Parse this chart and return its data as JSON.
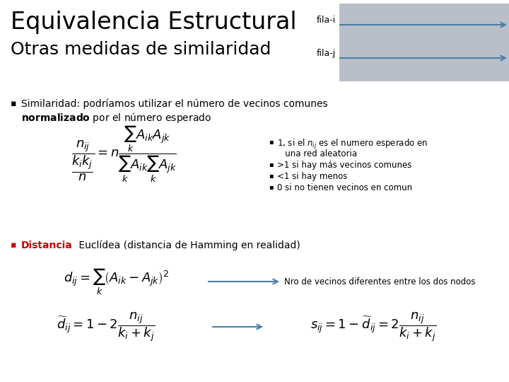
{
  "title_line1": "Equivalencia Estructural",
  "title_line2": "Otras medidas de similaridad",
  "bg_color": "#ffffff",
  "fila_i_label": "fila-i",
  "fila_j_label": "fila-j",
  "rect_color": "#b8bfc8",
  "arrow_color": "#4a7fa5",
  "bullet_notes": [
    "1, si el $n_{ij}$ es el numero esperado en",
    "   una red aleatoria",
    ">1 si hay más vecinos comunes",
    "<1 si hay menos",
    "0 si no tienen vecinos en comun"
  ],
  "arrow_annotation": "Nro de vecinos diferentes entre los dos nodos",
  "red_color": "#cc0000",
  "text_color": "#000000"
}
